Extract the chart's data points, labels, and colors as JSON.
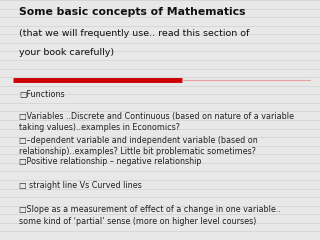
{
  "title_line1": "Some basic concepts of Mathematics",
  "title_line2": "(that we will frequently use.. read this section of",
  "title_line3": "your book carefully)",
  "bg_color": "#e8e8e8",
  "line_color": "#d0d0d0",
  "title_color": "#111111",
  "text_color": "#222222",
  "red_bar_color": "#cc0000",
  "red_bar_thin_color": "#e8a0a0",
  "bullet_char": "□",
  "bullet_items": [
    "Functions",
    "Variables ..Discrete and Continuous (based on nature of a variable\ntaking values)..examples in Economics?",
    "–dependent variable and independent variable (based on\nrelationship)..examples? Little bit problematic sometimes?",
    "Positive relationship – negative relationship",
    " straight line Vs Curved lines",
    "Slope as a measurement of effect of a change in one variable..\nsome kind of ‘partial’ sense (more on higher level courses)"
  ],
  "num_hlines": 28,
  "title_fs": 7.8,
  "subtitle_fs": 6.8,
  "bullet_fs": 5.8
}
